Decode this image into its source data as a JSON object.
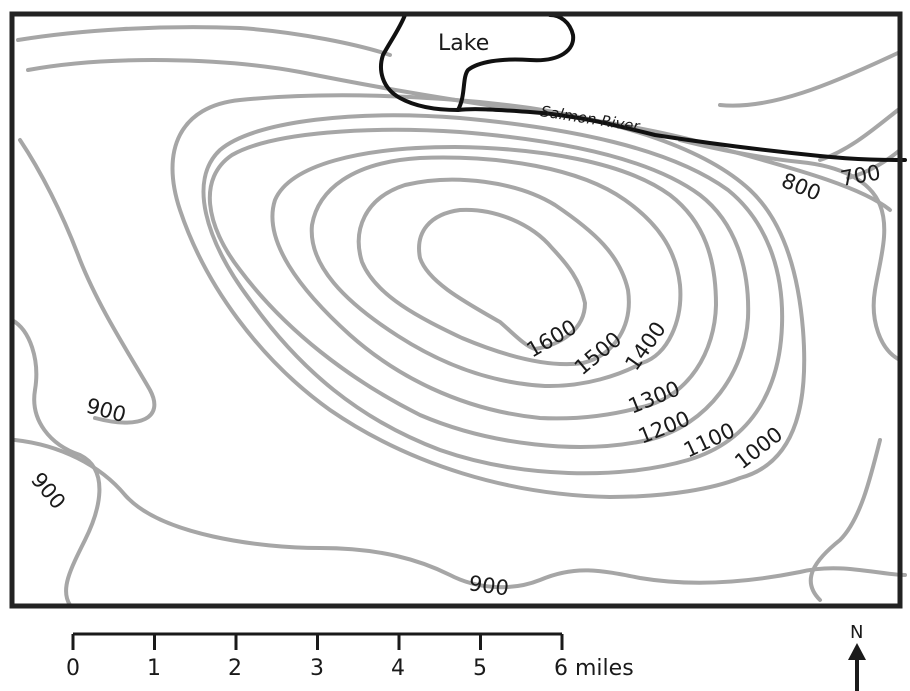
{
  "map": {
    "features": {
      "lake": "Lake",
      "river": "Salmon River"
    },
    "contour_labels": {
      "c700": "700",
      "c800": "800",
      "c900_west": "900",
      "c900_southwest": "900",
      "c900_south": "900",
      "c1000": "1000",
      "c1100": "1100",
      "c1200": "1200",
      "c1300": "1300",
      "c1400": "1400",
      "c1500": "1500",
      "c1600": "1600"
    },
    "scale": {
      "ticks": [
        "0",
        "1",
        "2",
        "3",
        "4",
        "5",
        "6"
      ],
      "unit": "miles"
    },
    "north": {
      "label": "N"
    },
    "colors": {
      "contour": "#a6a6a6",
      "water": "#111111",
      "frame": "#222222",
      "background": "#ffffff"
    }
  }
}
